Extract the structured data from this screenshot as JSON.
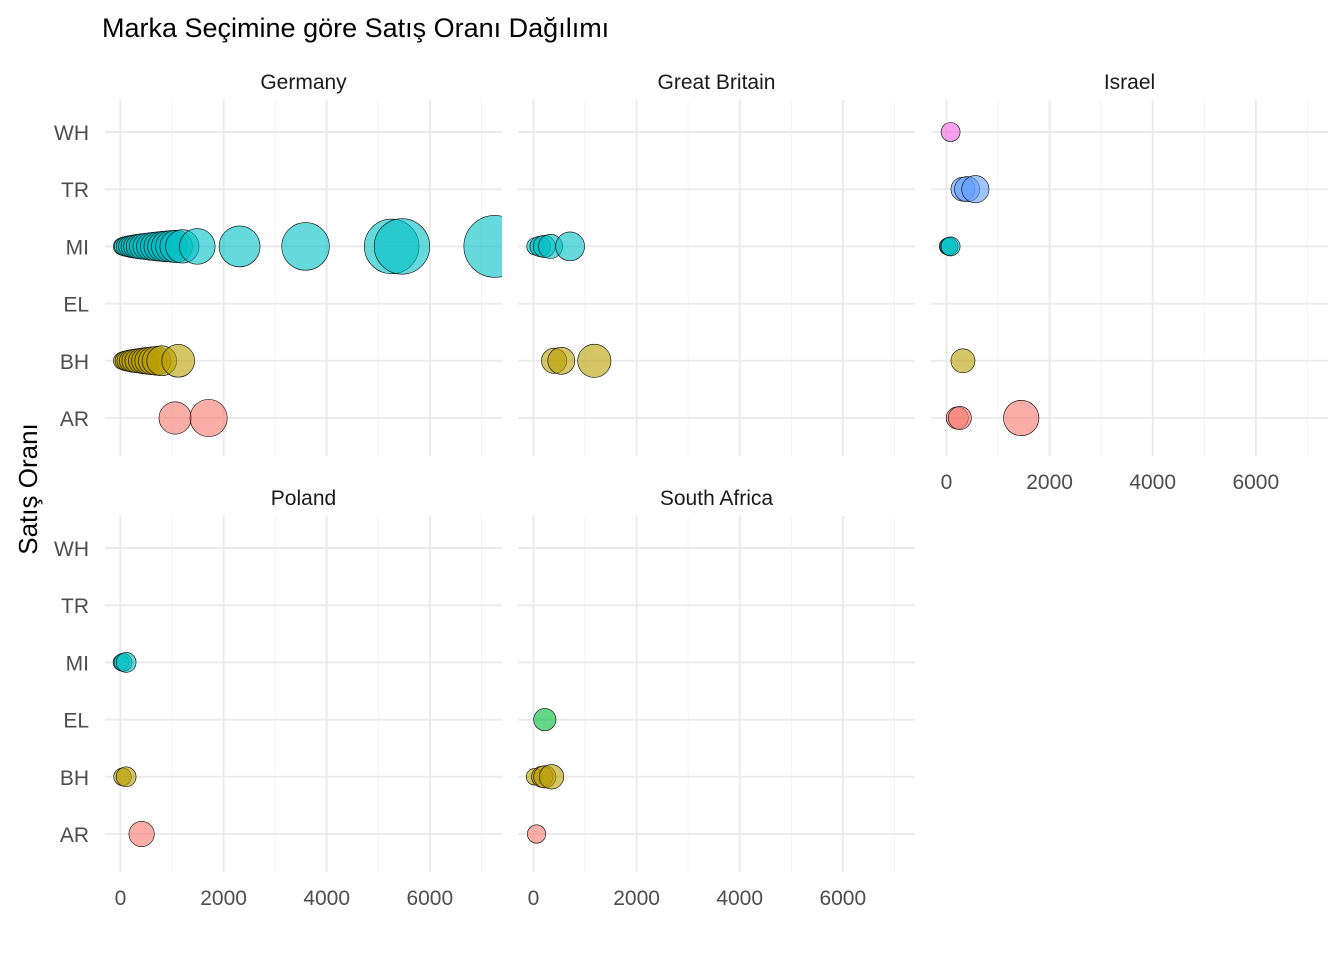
{
  "chart_data": {
    "type": "scatter",
    "title": "Marka Seçimine göre Satış Oranı Dağılımı",
    "ylabel": "Satış Oranı",
    "xlabel": "",
    "categories": [
      "AR",
      "BH",
      "EL",
      "MI",
      "TR",
      "WH"
    ],
    "xlim": [
      -300,
      7400
    ],
    "x_ticks": [
      0,
      2000,
      4000,
      6000
    ],
    "grid": true,
    "legend": "none",
    "colors": {
      "AR": "#F8766D",
      "BH": "#B79F00",
      "EL": "#00BA38",
      "MI": "#00BFC4",
      "TR": "#619CFF",
      "WH": "#F564E3"
    },
    "panels": [
      {
        "name": "Germany",
        "points": [
          {
            "cat": "AR",
            "x": 1060
          },
          {
            "cat": "AR",
            "x": 1710
          },
          {
            "cat": "BH",
            "x": 30
          },
          {
            "cat": "BH",
            "x": 80
          },
          {
            "cat": "BH",
            "x": 130
          },
          {
            "cat": "BH",
            "x": 190
          },
          {
            "cat": "BH",
            "x": 250
          },
          {
            "cat": "BH",
            "x": 320
          },
          {
            "cat": "BH",
            "x": 400
          },
          {
            "cat": "BH",
            "x": 470
          },
          {
            "cat": "BH",
            "x": 540
          },
          {
            "cat": "BH",
            "x": 620
          },
          {
            "cat": "BH",
            "x": 700
          },
          {
            "cat": "BH",
            "x": 800
          },
          {
            "cat": "BH",
            "x": 1120
          },
          {
            "cat": "MI",
            "x": 20
          },
          {
            "cat": "MI",
            "x": 60
          },
          {
            "cat": "MI",
            "x": 110
          },
          {
            "cat": "MI",
            "x": 170
          },
          {
            "cat": "MI",
            "x": 230
          },
          {
            "cat": "MI",
            "x": 290
          },
          {
            "cat": "MI",
            "x": 350
          },
          {
            "cat": "MI",
            "x": 420
          },
          {
            "cat": "MI",
            "x": 500
          },
          {
            "cat": "MI",
            "x": 580
          },
          {
            "cat": "MI",
            "x": 660
          },
          {
            "cat": "MI",
            "x": 740
          },
          {
            "cat": "MI",
            "x": 820
          },
          {
            "cat": "MI",
            "x": 900
          },
          {
            "cat": "MI",
            "x": 990
          },
          {
            "cat": "MI",
            "x": 1080
          },
          {
            "cat": "MI",
            "x": 1200
          },
          {
            "cat": "MI",
            "x": 1490
          },
          {
            "cat": "MI",
            "x": 2310
          },
          {
            "cat": "MI",
            "x": 3590
          },
          {
            "cat": "MI",
            "x": 5260
          },
          {
            "cat": "MI",
            "x": 5460
          },
          {
            "cat": "MI",
            "x": 7260
          }
        ]
      },
      {
        "name": "Great Britain",
        "points": [
          {
            "cat": "AR",
            "x": null
          },
          {
            "cat": "BH",
            "x": 400
          },
          {
            "cat": "BH",
            "x": 540
          },
          {
            "cat": "BH",
            "x": 1180
          },
          {
            "cat": "MI",
            "x": 40
          },
          {
            "cat": "MI",
            "x": 130
          },
          {
            "cat": "MI",
            "x": 210
          },
          {
            "cat": "MI",
            "x": 330
          },
          {
            "cat": "MI",
            "x": 710
          }
        ]
      },
      {
        "name": "Israel",
        "points": [
          {
            "cat": "AR",
            "x": 210
          },
          {
            "cat": "AR",
            "x": 260
          },
          {
            "cat": "AR",
            "x": 1450
          },
          {
            "cat": "BH",
            "x": 320
          },
          {
            "cat": "MI",
            "x": 20
          },
          {
            "cat": "MI",
            "x": 50
          },
          {
            "cat": "MI",
            "x": 80
          },
          {
            "cat": "TR",
            "x": 320
          },
          {
            "cat": "TR",
            "x": 400
          },
          {
            "cat": "TR",
            "x": 560
          },
          {
            "cat": "WH",
            "x": 80
          }
        ]
      },
      {
        "name": "Poland",
        "points": [
          {
            "cat": "AR",
            "x": 410
          },
          {
            "cat": "BH",
            "x": 40
          },
          {
            "cat": "BH",
            "x": 110
          },
          {
            "cat": "MI",
            "x": 10
          },
          {
            "cat": "MI",
            "x": 50
          },
          {
            "cat": "MI",
            "x": 110
          }
        ]
      },
      {
        "name": "South Africa",
        "points": [
          {
            "cat": "AR",
            "x": 60
          },
          {
            "cat": "BH",
            "x": 20
          },
          {
            "cat": "BH",
            "x": 170
          },
          {
            "cat": "BH",
            "x": 220
          },
          {
            "cat": "BH",
            "x": 350
          },
          {
            "cat": "EL",
            "x": 220
          }
        ]
      }
    ]
  }
}
